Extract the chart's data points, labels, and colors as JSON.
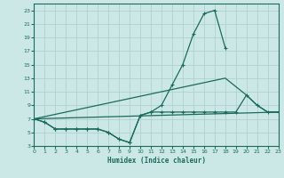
{
  "xlabel": "Humidex (Indice chaleur)",
  "background_color": "#cce8e6",
  "grid_color": "#aacfcc",
  "line_color": "#1a6b5a",
  "xlim": [
    0,
    23
  ],
  "ylim": [
    3,
    24
  ],
  "xticks": [
    0,
    1,
    2,
    3,
    4,
    5,
    6,
    7,
    8,
    9,
    10,
    11,
    12,
    13,
    14,
    15,
    16,
    17,
    18,
    19,
    20,
    21,
    22,
    23
  ],
  "yticks": [
    3,
    5,
    7,
    9,
    11,
    13,
    15,
    17,
    19,
    21,
    23
  ],
  "line1_x": [
    0,
    1,
    2,
    3,
    4,
    5,
    6,
    7,
    8,
    9,
    10,
    11,
    12,
    13,
    14,
    15,
    16,
    17,
    18
  ],
  "line1_y": [
    7,
    6.5,
    5.5,
    5.5,
    5.5,
    5.5,
    5.5,
    5.0,
    4.0,
    3.5,
    7.5,
    8.0,
    9.0,
    12.0,
    15.0,
    19.5,
    22.5,
    23.0,
    17.5
  ],
  "line2_x": [
    0,
    1,
    2,
    3,
    4,
    5,
    6,
    7,
    8,
    9,
    10,
    11,
    12,
    13,
    14,
    15,
    16,
    17,
    18,
    19,
    20,
    21,
    22,
    23
  ],
  "line2_y": [
    7,
    6.5,
    5.5,
    5.5,
    5.5,
    5.5,
    5.5,
    5.0,
    4.0,
    3.5,
    7.5,
    8.0,
    8.0,
    8.0,
    8.0,
    8.0,
    8.0,
    8.0,
    8.0,
    8.0,
    10.5,
    9.0,
    8.0,
    8.0
  ],
  "line3_x": [
    0,
    18,
    20,
    21,
    22,
    23
  ],
  "line3_y": [
    7,
    13.0,
    10.5,
    9.0,
    8.0,
    8.0
  ],
  "line4_x": [
    0,
    23
  ],
  "line4_y": [
    7,
    8.0
  ]
}
